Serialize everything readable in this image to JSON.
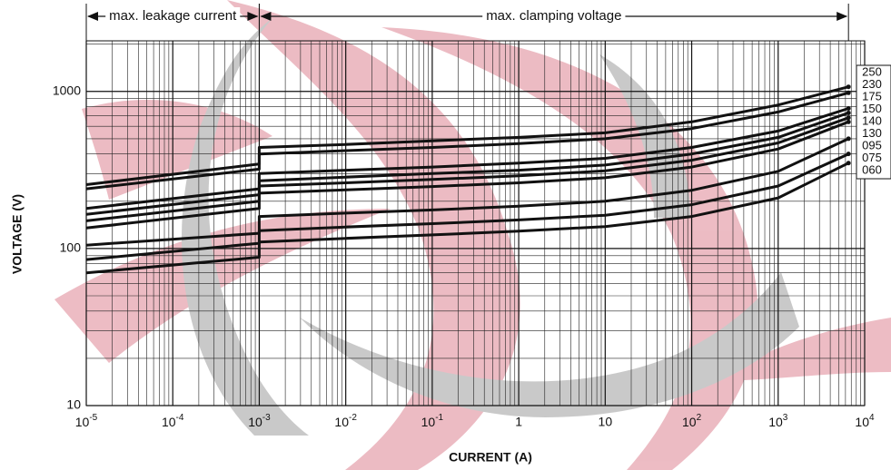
{
  "chart_data": {
    "type": "line",
    "xlabel": "CURRENT (A)",
    "ylabel": "VOLTAGE (V)",
    "xscale": "log",
    "yscale": "log",
    "grid": true,
    "xlim": [
      1e-05,
      10000
    ],
    "ylim": [
      10,
      2100
    ],
    "xticks": [
      {
        "value": 1e-05,
        "label": "10",
        "exponent": "-5"
      },
      {
        "value": 0.0001,
        "label": "10",
        "exponent": "-4"
      },
      {
        "value": 0.001,
        "label": "10",
        "exponent": "-3"
      },
      {
        "value": 0.01,
        "label": "10",
        "exponent": "-2"
      },
      {
        "value": 0.1,
        "label": "10",
        "exponent": "-1"
      },
      1,
      10,
      {
        "value": 100,
        "label": "10",
        "exponent": "2"
      },
      {
        "value": 1000,
        "label": "10",
        "exponent": "3"
      },
      {
        "value": 10000,
        "label": "10",
        "exponent": "4"
      }
    ],
    "yticks": [
      10,
      100,
      1000
    ],
    "annotations": [
      {
        "text": "max. leakage current",
        "x": [
          1e-05,
          0.001
        ]
      },
      {
        "text": "max. clamping voltage",
        "x": [
          0.001,
          6500
        ]
      }
    ],
    "x": [
      1e-05,
      0.001,
      0.001,
      0.01,
      0.1,
      1,
      10,
      100,
      1000,
      6500
    ],
    "series": [
      {
        "name": "250",
        "color": "#111111",
        "values": [
          255,
          345,
          440,
          460,
          485,
          510,
          545,
          640,
          820,
          1070
        ]
      },
      {
        "name": "230",
        "color": "#111111",
        "values": [
          240,
          320,
          400,
          420,
          440,
          465,
          500,
          580,
          740,
          980
        ]
      },
      {
        "name": "175",
        "color": "#111111",
        "values": [
          180,
          240,
          300,
          315,
          330,
          350,
          375,
          440,
          560,
          780
        ]
      },
      {
        "name": "150",
        "color": "#111111",
        "values": [
          165,
          220,
          270,
          285,
          300,
          315,
          340,
          400,
          510,
          730
        ]
      },
      {
        "name": "140",
        "color": "#111111",
        "values": [
          150,
          200,
          250,
          262,
          275,
          290,
          312,
          365,
          470,
          680
        ]
      },
      {
        "name": "130",
        "color": "#111111",
        "values": [
          135,
          180,
          225,
          236,
          248,
          262,
          282,
          330,
          430,
          640
        ]
      },
      {
        "name": "095",
        "color": "#111111",
        "values": [
          105,
          125,
          160,
          168,
          176,
          186,
          200,
          235,
          310,
          500
        ]
      },
      {
        "name": "075",
        "color": "#111111",
        "values": [
          85,
          108,
          130,
          137,
          144,
          152,
          163,
          190,
          250,
          400
        ]
      },
      {
        "name": "060",
        "color": "#111111",
        "values": [
          70,
          88,
          110,
          116,
          122,
          129,
          138,
          160,
          210,
          350
        ]
      }
    ]
  }
}
